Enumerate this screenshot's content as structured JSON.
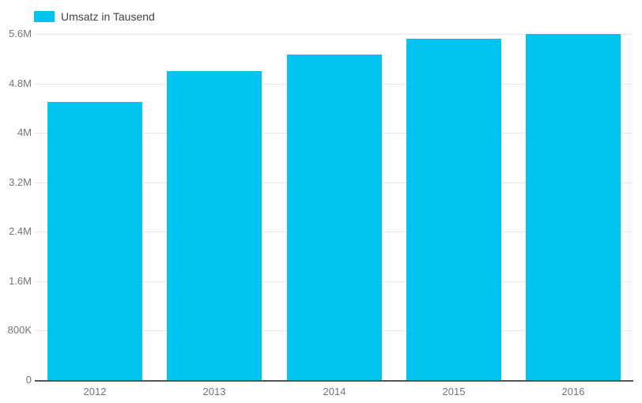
{
  "chart_data": {
    "type": "bar",
    "title": "",
    "legend": {
      "label": "Umsatz in Tausend",
      "position": "top-left"
    },
    "categories": [
      "2012",
      "2013",
      "2014",
      "2015",
      "2016"
    ],
    "series": [
      {
        "name": "Umsatz in Tausend",
        "values": [
          4500000,
          5000000,
          5270000,
          5520000,
          5600000
        ]
      }
    ],
    "xlabel": "",
    "ylabel": "",
    "ylim": [
      0,
      5600000
    ],
    "y_ticks": [
      {
        "value": 0,
        "label": "0"
      },
      {
        "value": 800000,
        "label": "800K"
      },
      {
        "value": 1600000,
        "label": "1.6M"
      },
      {
        "value": 2400000,
        "label": "2.4M"
      },
      {
        "value": 3200000,
        "label": "3.2M"
      },
      {
        "value": 4000000,
        "label": "4M"
      },
      {
        "value": 4800000,
        "label": "4.8M"
      },
      {
        "value": 5600000,
        "label": "5.6M"
      }
    ],
    "grid": true,
    "legend_visible": true
  },
  "colors": {
    "bar": "#00c3f0",
    "gridline": "#e6e6e6",
    "axis_baseline": "#555555",
    "axis_label": "#757575",
    "legend_text": "#424242",
    "background": "#ffffff"
  }
}
